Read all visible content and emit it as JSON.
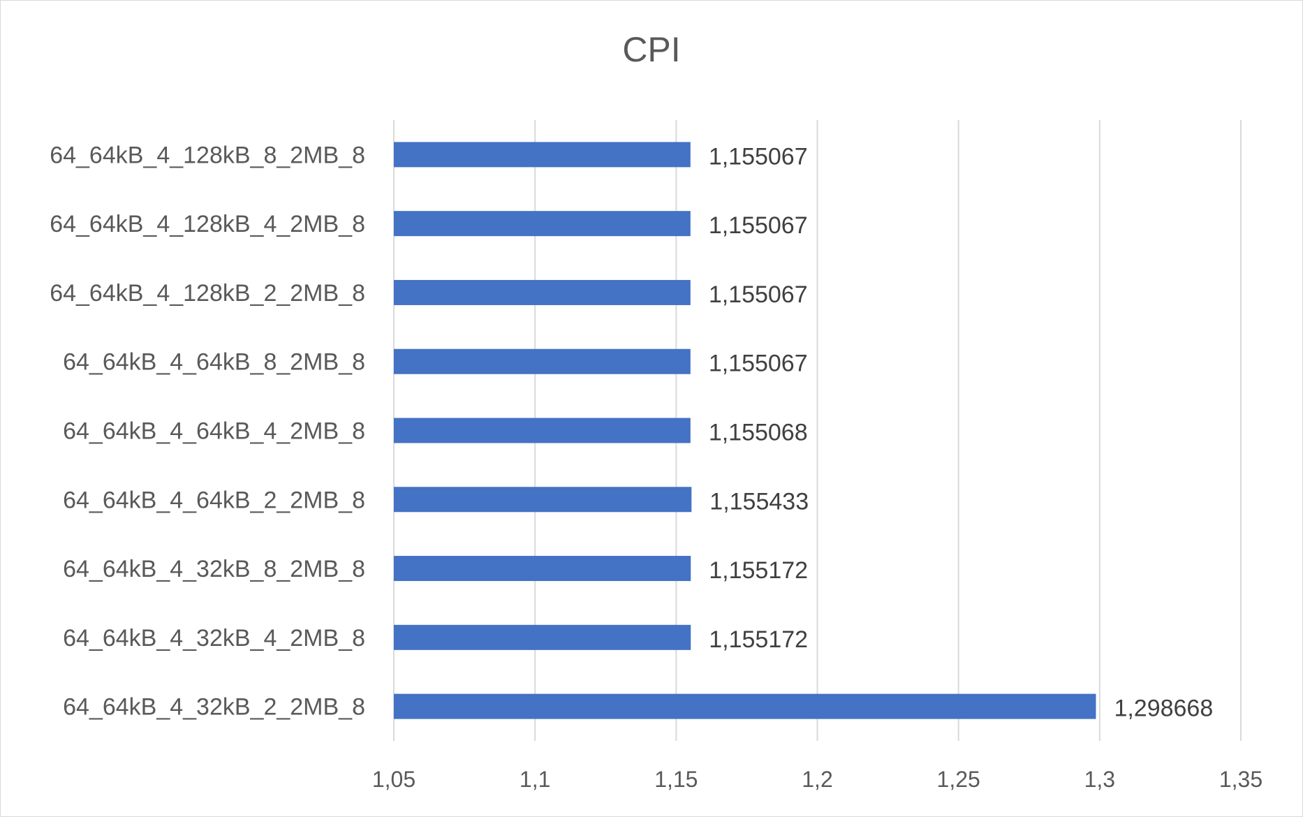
{
  "chart_data": {
    "type": "bar",
    "orientation": "horizontal",
    "title": "CPI",
    "categories": [
      "64_64kB_4_128kB_8_2MB_8",
      "64_64kB_4_128kB_4_2MB_8",
      "64_64kB_4_128kB_2_2MB_8",
      "64_64kB_4_64kB_8_2MB_8",
      "64_64kB_4_64kB_4_2MB_8",
      "64_64kB_4_64kB_2_2MB_8",
      "64_64kB_4_32kB_8_2MB_8",
      "64_64kB_4_32kB_4_2MB_8",
      "64_64kB_4_32kB_2_2MB_8"
    ],
    "values": [
      1.155067,
      1.155067,
      1.155067,
      1.155067,
      1.155068,
      1.155433,
      1.155172,
      1.155172,
      1.298668
    ],
    "value_labels": [
      "1,155067",
      "1,155067",
      "1,155067",
      "1,155067",
      "1,155068",
      "1,155433",
      "1,155172",
      "1,155172",
      "1,298668"
    ],
    "xlim": [
      1.05,
      1.35
    ],
    "x_ticks": [
      1.05,
      1.1,
      1.15,
      1.2,
      1.25,
      1.3,
      1.35
    ],
    "x_tick_labels": [
      "1,05",
      "1,1",
      "1,15",
      "1,2",
      "1,25",
      "1,3",
      "1,35"
    ],
    "grid": true,
    "legend": "none",
    "bar_color": "#4472c4",
    "grid_color": "#d9d9d9"
  }
}
